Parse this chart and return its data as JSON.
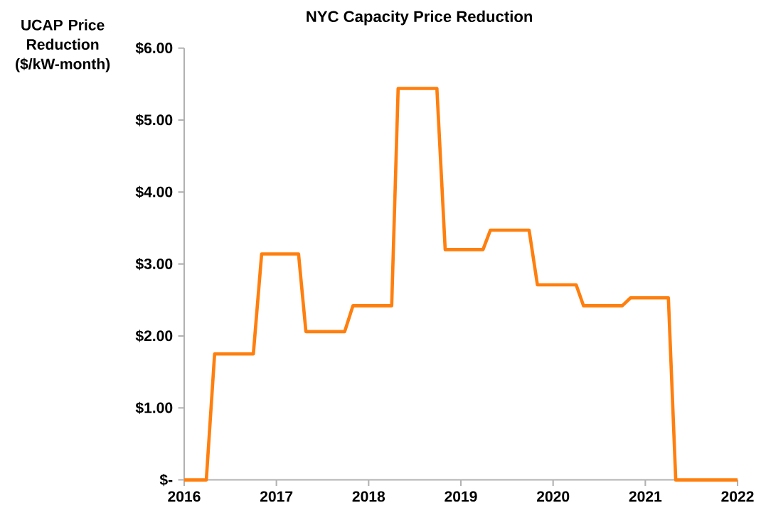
{
  "chart_data": {
    "type": "line",
    "title": "NYC Capacity Price Reduction",
    "ylabel": "UCAP Price Reduction ($/kW-month)",
    "x": [
      2016,
      2016.24,
      2016.33,
      2016.75,
      2016.84,
      2017.24,
      2017.32,
      2017.74,
      2017.83,
      2018.25,
      2018.32,
      2018.74,
      2018.83,
      2019.24,
      2019.32,
      2019.74,
      2019.83,
      2020.25,
      2020.33,
      2020.75,
      2020.84,
      2021.25,
      2021.33,
      2022
    ],
    "series": [
      {
        "color": "#ff7f0e",
        "values": [
          0,
          0,
          1.75,
          1.75,
          3.14,
          3.14,
          2.06,
          2.06,
          2.42,
          2.42,
          5.44,
          5.44,
          3.2,
          3.2,
          3.47,
          3.47,
          2.71,
          2.71,
          2.42,
          2.42,
          2.53,
          2.53,
          0,
          0
        ]
      }
    ],
    "xlim": [
      2016,
      2022
    ],
    "ylim": [
      0,
      6
    ],
    "xticks": [
      2016,
      2017,
      2018,
      2019,
      2020,
      2021,
      2022
    ],
    "yticks": [
      {
        "value": 0,
        "label": "$-"
      },
      {
        "value": 1,
        "label": "$1.00"
      },
      {
        "value": 2,
        "label": "$2.00"
      },
      {
        "value": 3,
        "label": "$3.00"
      },
      {
        "value": 4,
        "label": "$4.00"
      },
      {
        "value": 5,
        "label": "$5.00"
      },
      {
        "value": 6,
        "label": "$6.00"
      }
    ],
    "grid": false,
    "marker": "none",
    "line_style": "solid"
  }
}
